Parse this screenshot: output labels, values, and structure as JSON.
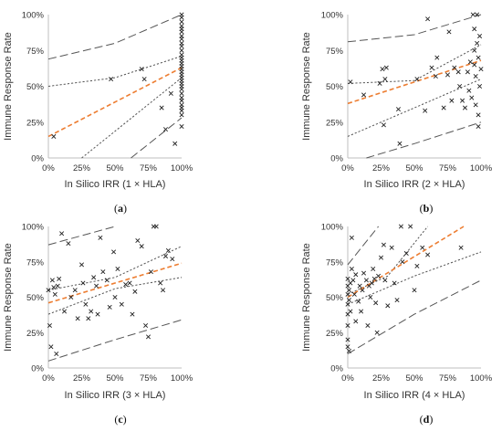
{
  "chart_data": [
    {
      "type": "scatter",
      "label": "(a)",
      "xlabel": "In Silico IRR (1 × HLA)",
      "ylabel": "Immune Response Rate",
      "xlim": [
        0,
        100
      ],
      "ylim": [
        0,
        100
      ],
      "xticks": [
        "0%",
        "25%",
        "50%",
        "75%",
        "100%"
      ],
      "yticks": [
        "0%",
        "25%",
        "50%",
        "75%",
        "100%"
      ],
      "points": [
        [
          4,
          15
        ],
        [
          47,
          55
        ],
        [
          70,
          62
        ],
        [
          72,
          55
        ],
        [
          85,
          35
        ],
        [
          88,
          20
        ],
        [
          92,
          45
        ],
        [
          95,
          10
        ],
        [
          100,
          100
        ],
        [
          100,
          98
        ],
        [
          100,
          95
        ],
        [
          100,
          92
        ],
        [
          100,
          90
        ],
        [
          100,
          88
        ],
        [
          100,
          85
        ],
        [
          100,
          83
        ],
        [
          100,
          80
        ],
        [
          100,
          78
        ],
        [
          100,
          75
        ],
        [
          100,
          72
        ],
        [
          100,
          70
        ],
        [
          100,
          68
        ],
        [
          100,
          66
        ],
        [
          100,
          64
        ],
        [
          100,
          62
        ],
        [
          100,
          60
        ],
        [
          100,
          58
        ],
        [
          100,
          56
        ],
        [
          100,
          54
        ],
        [
          100,
          52
        ],
        [
          100,
          50
        ],
        [
          100,
          48
        ],
        [
          100,
          45
        ],
        [
          100,
          42
        ],
        [
          100,
          40
        ],
        [
          100,
          37
        ],
        [
          100,
          35
        ],
        [
          100,
          33
        ],
        [
          100,
          30
        ],
        [
          100,
          22
        ]
      ],
      "fit": [
        [
          0,
          15
        ],
        [
          100,
          63
        ]
      ],
      "ci_inner": [
        [
          [
            0,
            50
          ],
          [
            50,
            56
          ],
          [
            100,
            71
          ]
        ],
        [
          [
            25,
            0
          ],
          [
            100,
            56
          ]
        ]
      ],
      "ci_outer": [
        [
          [
            0,
            69
          ],
          [
            50,
            80
          ],
          [
            100,
            100
          ]
        ],
        [
          [
            62,
            0
          ],
          [
            100,
            28
          ]
        ]
      ]
    },
    {
      "type": "scatter",
      "label": "(b)",
      "xlabel": "In Silico IRR (2 × HLA)",
      "ylabel": "Immune Response Rate",
      "xlim": [
        0,
        100
      ],
      "ylim": [
        0,
        100
      ],
      "xticks": [
        "0%",
        "25%",
        "50%",
        "75%",
        "100%"
      ],
      "yticks": [
        "0%",
        "25%",
        "50%",
        "75%",
        "100%"
      ],
      "points": [
        [
          2,
          53
        ],
        [
          12,
          44
        ],
        [
          24,
          52
        ],
        [
          26,
          62
        ],
        [
          27,
          23
        ],
        [
          28,
          55
        ],
        [
          29,
          63
        ],
        [
          38,
          34
        ],
        [
          39,
          10
        ],
        [
          52,
          55
        ],
        [
          58,
          33
        ],
        [
          60,
          97
        ],
        [
          63,
          63
        ],
        [
          66,
          57
        ],
        [
          67,
          70
        ],
        [
          72,
          35
        ],
        [
          75,
          58
        ],
        [
          76,
          88
        ],
        [
          78,
          40
        ],
        [
          80,
          63
        ],
        [
          83,
          60
        ],
        [
          84,
          50
        ],
        [
          86,
          40
        ],
        [
          88,
          35
        ],
        [
          90,
          60
        ],
        [
          91,
          47
        ],
        [
          92,
          67
        ],
        [
          93,
          42
        ],
        [
          94,
          100
        ],
        [
          95,
          90
        ],
        [
          95,
          75
        ],
        [
          95,
          65
        ],
        [
          96,
          57
        ],
        [
          96,
          37
        ],
        [
          97,
          100
        ],
        [
          97,
          80
        ],
        [
          98,
          70
        ],
        [
          98,
          30
        ],
        [
          98,
          22
        ],
        [
          99,
          85
        ],
        [
          99,
          50
        ],
        [
          100,
          62
        ]
      ],
      "fit": [
        [
          0,
          38
        ],
        [
          100,
          68
        ]
      ],
      "ci_inner": [
        [
          [
            0,
            52
          ],
          [
            50,
            54
          ],
          [
            100,
            79
          ]
        ],
        [
          [
            0,
            15
          ],
          [
            50,
            35
          ],
          [
            100,
            55
          ]
        ]
      ],
      "ci_outer": [
        [
          [
            0,
            81
          ],
          [
            50,
            86
          ],
          [
            100,
            100
          ]
        ],
        [
          [
            14,
            0
          ],
          [
            50,
            10
          ],
          [
            100,
            25
          ]
        ]
      ]
    },
    {
      "type": "scatter",
      "label": "(c)",
      "xlabel": "In Silico IRR (3 × HLA)",
      "ylabel": "Immune Response Rate",
      "xlim": [
        0,
        100
      ],
      "ylim": [
        0,
        100
      ],
      "xticks": [
        "0%",
        "25%",
        "50%",
        "75%",
        "100%"
      ],
      "yticks": [
        "0%",
        "25%",
        "50%",
        "75%",
        "100%"
      ],
      "points": [
        [
          0,
          55
        ],
        [
          1,
          30
        ],
        [
          2,
          15
        ],
        [
          3,
          62
        ],
        [
          4,
          57
        ],
        [
          5,
          52
        ],
        [
          6,
          10
        ],
        [
          7,
          58
        ],
        [
          8,
          63
        ],
        [
          10,
          95
        ],
        [
          12,
          40
        ],
        [
          15,
          88
        ],
        [
          17,
          50
        ],
        [
          20,
          55
        ],
        [
          22,
          35
        ],
        [
          25,
          73
        ],
        [
          26,
          60
        ],
        [
          28,
          45
        ],
        [
          30,
          35
        ],
        [
          32,
          40
        ],
        [
          34,
          64
        ],
        [
          36,
          58
        ],
        [
          37,
          38
        ],
        [
          39,
          92
        ],
        [
          41,
          68
        ],
        [
          44,
          62
        ],
        [
          46,
          43
        ],
        [
          49,
          82
        ],
        [
          50,
          50
        ],
        [
          52,
          70
        ],
        [
          55,
          45
        ],
        [
          58,
          59
        ],
        [
          61,
          60
        ],
        [
          63,
          38
        ],
        [
          65,
          54
        ],
        [
          67,
          90
        ],
        [
          70,
          86
        ],
        [
          73,
          30
        ],
        [
          75,
          22
        ],
        [
          77,
          68
        ],
        [
          79,
          100
        ],
        [
          81,
          100
        ],
        [
          84,
          60
        ],
        [
          86,
          55
        ],
        [
          88,
          79
        ],
        [
          90,
          83
        ],
        [
          93,
          77
        ]
      ],
      "fit": [
        [
          0,
          46
        ],
        [
          100,
          74
        ]
      ],
      "ci_inner": [
        [
          [
            0,
            55
          ],
          [
            50,
            64
          ],
          [
            100,
            86
          ]
        ],
        [
          [
            0,
            38
          ],
          [
            50,
            56
          ],
          [
            100,
            64
          ]
        ]
      ],
      "ci_outer": [
        [
          [
            0,
            87
          ],
          [
            50,
            100
          ]
        ],
        [
          [
            0,
            5
          ],
          [
            50,
            20
          ],
          [
            100,
            34
          ]
        ]
      ]
    },
    {
      "type": "scatter",
      "label": "(d)",
      "xlabel": "In Silico IRR (4 × HLA)",
      "ylabel": "Immune Response Rate",
      "xlim": [
        0,
        100
      ],
      "ylim": [
        0,
        100
      ],
      "xticks": [
        "0%",
        "25%",
        "50%",
        "75%",
        "100%"
      ],
      "yticks": [
        "0%",
        "25%",
        "50%",
        "75%",
        "100%"
      ],
      "points": [
        [
          0,
          63
        ],
        [
          0,
          58
        ],
        [
          0,
          52
        ],
        [
          0,
          45
        ],
        [
          0,
          38
        ],
        [
          0,
          30
        ],
        [
          0,
          20
        ],
        [
          0,
          15
        ],
        [
          1,
          55
        ],
        [
          1,
          48
        ],
        [
          1,
          12
        ],
        [
          2,
          60
        ],
        [
          2,
          40
        ],
        [
          3,
          92
        ],
        [
          3,
          70
        ],
        [
          4,
          62
        ],
        [
          5,
          52
        ],
        [
          6,
          66
        ],
        [
          6,
          33
        ],
        [
          8,
          47
        ],
        [
          9,
          58
        ],
        [
          10,
          40
        ],
        [
          11,
          55
        ],
        [
          12,
          67
        ],
        [
          14,
          62
        ],
        [
          15,
          30
        ],
        [
          16,
          58
        ],
        [
          17,
          50
        ],
        [
          18,
          60
        ],
        [
          19,
          70
        ],
        [
          20,
          63
        ],
        [
          21,
          46
        ],
        [
          22,
          25
        ],
        [
          23,
          65
        ],
        [
          25,
          78
        ],
        [
          27,
          87
        ],
        [
          28,
          62
        ],
        [
          30,
          44
        ],
        [
          33,
          85
        ],
        [
          35,
          60
        ],
        [
          37,
          48
        ],
        [
          40,
          100
        ],
        [
          41,
          75
        ],
        [
          44,
          81
        ],
        [
          47,
          100
        ],
        [
          50,
          55
        ],
        [
          52,
          72
        ],
        [
          56,
          85
        ],
        [
          60,
          80
        ],
        [
          85,
          85
        ]
      ],
      "fit": [
        [
          0,
          50
        ],
        [
          87,
          100
        ]
      ],
      "ci_inner": [
        [
          [
            0,
            52
          ],
          [
            30,
            65
          ],
          [
            60,
            100
          ]
        ],
        [
          [
            0,
            45
          ],
          [
            50,
            65
          ],
          [
            100,
            82
          ]
        ]
      ],
      "ci_outer": [
        [
          [
            0,
            73
          ],
          [
            23,
            100
          ]
        ],
        [
          [
            0,
            10
          ],
          [
            50,
            38
          ],
          [
            100,
            62
          ]
        ]
      ]
    }
  ]
}
